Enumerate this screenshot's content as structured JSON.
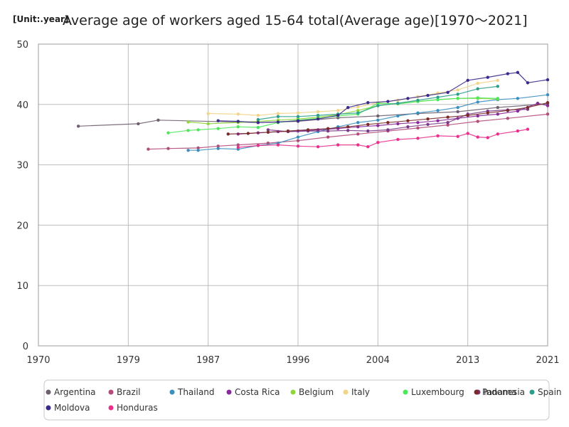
{
  "chart_data": {
    "type": "line",
    "title": "Average age of workers aged 15-64 total(Average age)[1970～2021]",
    "unit": "[Unit:.year]",
    "xlabel": "",
    "ylabel": "",
    "xlim": [
      1970,
      2021
    ],
    "ylim": [
      0,
      50
    ],
    "x_ticks": [
      1970,
      1979,
      1987,
      1996,
      2004,
      2013,
      2021
    ],
    "y_ticks": [
      0,
      10,
      20,
      30,
      40,
      50
    ],
    "grid": true,
    "legend_position": "bottom",
    "series": [
      {
        "name": "Argentina",
        "color": "#6e5f6e",
        "points": [
          [
            1974,
            36.4
          ],
          [
            1980,
            36.8
          ],
          [
            1982,
            37.4
          ],
          [
            1992,
            37.0
          ],
          [
            1996,
            37.2
          ],
          [
            2000,
            37.8
          ],
          [
            2004,
            38.1
          ],
          [
            2008,
            38.5
          ],
          [
            2012,
            38.8
          ],
          [
            2016,
            39.5
          ],
          [
            2021,
            40.1
          ]
        ]
      },
      {
        "name": "Brazil",
        "color": "#b24c7a",
        "points": [
          [
            1981,
            32.6
          ],
          [
            1983,
            32.7
          ],
          [
            1986,
            32.8
          ],
          [
            1988,
            33.1
          ],
          [
            1990,
            33.3
          ],
          [
            1993,
            33.6
          ],
          [
            1996,
            34.0
          ],
          [
            1999,
            34.6
          ],
          [
            2002,
            35.1
          ],
          [
            2005,
            35.6
          ],
          [
            2008,
            36.1
          ],
          [
            2011,
            36.6
          ],
          [
            2014,
            37.2
          ],
          [
            2017,
            37.7
          ],
          [
            2021,
            38.4
          ]
        ]
      },
      {
        "name": "Thailand",
        "color": "#3b8fbf",
        "points": [
          [
            1985,
            32.4
          ],
          [
            1986,
            32.4
          ],
          [
            1988,
            32.7
          ],
          [
            1990,
            32.6
          ],
          [
            1992,
            33.2
          ],
          [
            1994,
            33.6
          ],
          [
            1996,
            34.6
          ],
          [
            1998,
            35.5
          ],
          [
            2000,
            36.3
          ],
          [
            2002,
            37.0
          ],
          [
            2004,
            37.4
          ],
          [
            2006,
            38.1
          ],
          [
            2008,
            38.6
          ],
          [
            2010,
            39.0
          ],
          [
            2012,
            39.5
          ],
          [
            2014,
            40.4
          ],
          [
            2016,
            40.8
          ],
          [
            2018,
            41.0
          ],
          [
            2021,
            41.6
          ]
        ]
      },
      {
        "name": "Costa Rica",
        "color": "#8a2a9a",
        "points": [
          [
            1990,
            35.1
          ],
          [
            1992,
            35.3
          ],
          [
            1994,
            35.5
          ],
          [
            1996,
            35.6
          ],
          [
            1998,
            35.8
          ],
          [
            2000,
            36.0
          ],
          [
            2002,
            36.3
          ],
          [
            2004,
            36.5
          ],
          [
            2006,
            36.8
          ],
          [
            2008,
            37.0
          ],
          [
            2010,
            37.3
          ],
          [
            2012,
            37.7
          ],
          [
            2014,
            38.1
          ],
          [
            2016,
            38.4
          ],
          [
            2018,
            38.9
          ],
          [
            2020,
            40.2
          ],
          [
            2021,
            39.8
          ]
        ]
      },
      {
        "name": "Belgium",
        "color": "#8ed63a",
        "points": [
          [
            1985,
            37.1
          ],
          [
            1987,
            36.8
          ],
          [
            1990,
            37.0
          ],
          [
            1992,
            37.2
          ],
          [
            1994,
            37.4
          ],
          [
            1996,
            37.6
          ],
          [
            1998,
            37.9
          ],
          [
            2000,
            38.3
          ],
          [
            2002,
            39.0
          ],
          [
            2004,
            39.8
          ],
          [
            2006,
            40.2
          ],
          [
            2008,
            40.5
          ],
          [
            2010,
            40.8
          ],
          [
            2012,
            41.0
          ],
          [
            2014,
            41.0
          ],
          [
            2016,
            40.9
          ]
        ]
      },
      {
        "name": "Italy",
        "color": "#f2d48a",
        "points": [
          [
            1987,
            38.5
          ],
          [
            1990,
            38.4
          ],
          [
            1992,
            38.2
          ],
          [
            1994,
            38.5
          ],
          [
            1996,
            38.6
          ],
          [
            1998,
            38.8
          ],
          [
            2000,
            39.0
          ],
          [
            2002,
            39.6
          ],
          [
            2004,
            40.3
          ],
          [
            2006,
            40.7
          ],
          [
            2008,
            41.3
          ],
          [
            2010,
            41.9
          ],
          [
            2012,
            42.4
          ],
          [
            2014,
            43.5
          ],
          [
            2016,
            44.0
          ]
        ]
      },
      {
        "name": "Luxembourg",
        "color": "#4de85a",
        "points": [
          [
            1983,
            35.3
          ],
          [
            1985,
            35.7
          ],
          [
            1986,
            35.8
          ],
          [
            1988,
            36.0
          ],
          [
            1990,
            36.3
          ],
          [
            1992,
            36.2
          ],
          [
            1994,
            37.0
          ],
          [
            1996,
            37.4
          ],
          [
            1998,
            37.7
          ],
          [
            2000,
            38.1
          ],
          [
            2002,
            38.4
          ],
          [
            2004,
            40.2
          ],
          [
            2006,
            40.1
          ],
          [
            2008,
            40.5
          ],
          [
            2010,
            40.8
          ],
          [
            2012,
            41.0
          ],
          [
            2014,
            41.1
          ],
          [
            2016,
            41.0
          ]
        ]
      },
      {
        "name": "Indonesia",
        "color": "#7a3a8a",
        "points": [
          [
            1993,
            35.8
          ],
          [
            1995,
            35.5
          ],
          [
            1997,
            35.6
          ],
          [
            1999,
            35.6
          ],
          [
            2001,
            35.7
          ],
          [
            2003,
            35.6
          ],
          [
            2005,
            35.8
          ],
          [
            2007,
            36.3
          ],
          [
            2009,
            36.7
          ],
          [
            2011,
            37.0
          ],
          [
            2013,
            38.4
          ],
          [
            2015,
            38.9
          ],
          [
            2017,
            39.1
          ],
          [
            2019,
            39.2
          ]
        ]
      },
      {
        "name": "Spain",
        "color": "#2e9e8c",
        "points": [
          [
            1992,
            37.5
          ],
          [
            1994,
            38.0
          ],
          [
            1996,
            38.0
          ],
          [
            1998,
            38.2
          ],
          [
            2000,
            38.4
          ],
          [
            2002,
            38.6
          ],
          [
            2004,
            39.8
          ],
          [
            2006,
            40.2
          ],
          [
            2008,
            40.7
          ],
          [
            2010,
            41.2
          ],
          [
            2012,
            41.7
          ],
          [
            2014,
            42.6
          ],
          [
            2016,
            43.0
          ]
        ]
      },
      {
        "name": "Panama",
        "color": "#7a2a2a",
        "points": [
          [
            1989,
            35.1
          ],
          [
            1991,
            35.2
          ],
          [
            1993,
            35.4
          ],
          [
            1995,
            35.6
          ],
          [
            1997,
            35.8
          ],
          [
            1999,
            36.0
          ],
          [
            2001,
            36.3
          ],
          [
            2003,
            36.7
          ],
          [
            2005,
            37.0
          ],
          [
            2007,
            37.3
          ],
          [
            2009,
            37.6
          ],
          [
            2011,
            37.9
          ],
          [
            2013,
            38.2
          ],
          [
            2015,
            38.6
          ],
          [
            2017,
            39.0
          ],
          [
            2019,
            39.5
          ],
          [
            2021,
            40.3
          ]
        ]
      },
      {
        "name": "Moldova",
        "color": "#3a2a8a",
        "points": [
          [
            1988,
            37.3
          ],
          [
            1990,
            37.2
          ],
          [
            1992,
            37.0
          ],
          [
            1994,
            37.1
          ],
          [
            1996,
            37.3
          ],
          [
            1998,
            37.6
          ],
          [
            2000,
            38.2
          ],
          [
            2001,
            39.5
          ],
          [
            2003,
            40.3
          ],
          [
            2005,
            40.5
          ],
          [
            2007,
            41.0
          ],
          [
            2009,
            41.5
          ],
          [
            2011,
            42.0
          ],
          [
            2013,
            44.0
          ],
          [
            2015,
            44.5
          ],
          [
            2017,
            45.1
          ],
          [
            2018,
            45.3
          ],
          [
            2019,
            43.6
          ],
          [
            2021,
            44.1
          ]
        ]
      },
      {
        "name": "Honduras",
        "color": "#e8318c",
        "points": [
          [
            1990,
            32.9
          ],
          [
            1992,
            33.2
          ],
          [
            1994,
            33.3
          ],
          [
            1996,
            33.1
          ],
          [
            1998,
            33.0
          ],
          [
            2000,
            33.3
          ],
          [
            2002,
            33.3
          ],
          [
            2003,
            33.0
          ],
          [
            2004,
            33.7
          ],
          [
            2006,
            34.2
          ],
          [
            2008,
            34.4
          ],
          [
            2010,
            34.8
          ],
          [
            2012,
            34.7
          ],
          [
            2013,
            35.2
          ],
          [
            2014,
            34.6
          ],
          [
            2015,
            34.5
          ],
          [
            2016,
            35.1
          ],
          [
            2018,
            35.6
          ],
          [
            2019,
            35.9
          ]
        ]
      }
    ]
  }
}
